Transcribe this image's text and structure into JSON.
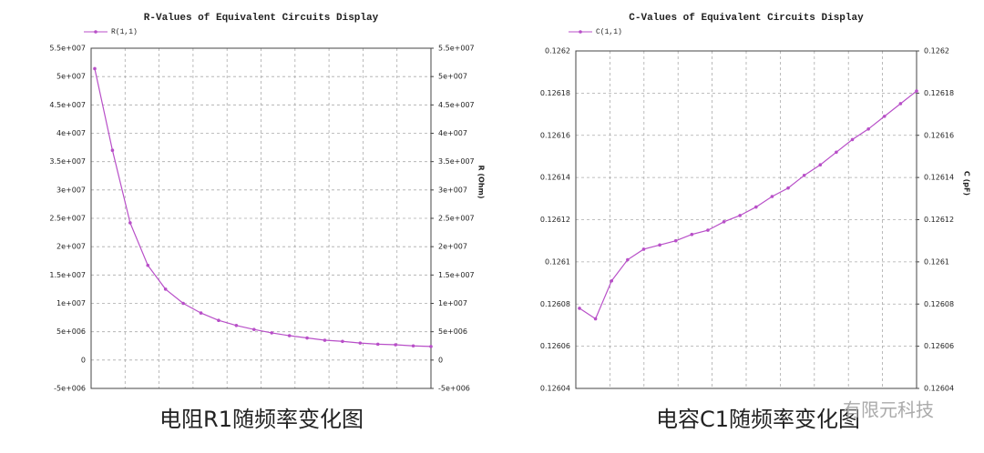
{
  "chart_data": [
    {
      "type": "line",
      "title": "R-Values of Equivalent Circuits Display",
      "y2label": "R (Ohm)",
      "series": [
        {
          "name": "R(1,1)",
          "color": "#b84fc8",
          "values": [
            51400000,
            37000000,
            24200000,
            16700000,
            12500000,
            10000000,
            8300000,
            7000000,
            6100000,
            5400000,
            4800000,
            4300000,
            3900000,
            3500000,
            3300000,
            3000000,
            2800000,
            2700000,
            2500000,
            2400000
          ]
        }
      ],
      "ylim": [
        -5000000,
        55000000
      ],
      "yticks": [
        {
          "value": -5000000,
          "label": "-5e+006"
        },
        0,
        {
          "value": 5000000,
          "label": "5e+006"
        },
        {
          "value": 10000000,
          "label": "1e+007"
        },
        {
          "value": 15000000,
          "label": "1.5e+007"
        },
        {
          "value": 20000000,
          "label": "2e+007"
        },
        {
          "value": 25000000,
          "label": "2.5e+007"
        },
        {
          "value": 30000000,
          "label": "3e+007"
        },
        {
          "value": 35000000,
          "label": "3.5e+007"
        },
        {
          "value": 40000000,
          "label": "4e+007"
        },
        {
          "value": 45000000,
          "label": "4.5e+007"
        },
        {
          "value": 50000000,
          "label": "5e+007"
        },
        {
          "value": 55000000,
          "label": "5.5e+007"
        }
      ],
      "y2lim": [
        -5000000,
        55000000
      ],
      "y2ticks": [
        {
          "value": -5000000,
          "label": "-5e+006"
        },
        0,
        {
          "value": 5000000,
          "label": "5e+006"
        },
        {
          "value": 10000000,
          "label": "1e+007"
        },
        {
          "value": 15000000,
          "label": "1.5e+007"
        },
        {
          "value": 20000000,
          "label": "2e+007"
        },
        {
          "value": 25000000,
          "label": "2.5e+007"
        },
        {
          "value": 30000000,
          "label": "3e+007"
        },
        {
          "value": 35000000,
          "label": "3.5e+007"
        },
        {
          "value": 40000000,
          "label": "4e+007"
        },
        {
          "value": 45000000,
          "label": "4.5e+007"
        },
        {
          "value": 50000000,
          "label": "5e+007"
        },
        {
          "value": 55000000,
          "label": "5.5e+007"
        }
      ],
      "grid": true
    },
    {
      "type": "line",
      "title": "C-Values of Equivalent Circuits Display",
      "y2label": "C (pF)",
      "series": [
        {
          "name": "C(1,1)",
          "color": "#b84fc8",
          "values": [
            0.126078,
            0.126073,
            0.126091,
            0.126101,
            0.126106,
            0.126108,
            0.12611,
            0.126113,
            0.126115,
            0.126119,
            0.126122,
            0.126126,
            0.126131,
            0.126135,
            0.126141,
            0.126146,
            0.126152,
            0.126158,
            0.126163,
            0.126169,
            0.126175,
            0.126181
          ]
        }
      ],
      "ylim": [
        0.12604,
        0.1262
      ],
      "yticks": [
        0.12604,
        0.12606,
        0.12608,
        0.1261,
        0.12612,
        0.12614,
        0.12616,
        0.12618,
        0.1262
      ],
      "y2lim": [
        0.12604,
        0.1262
      ],
      "y2ticks": [
        0.12604,
        0.12606,
        0.12608,
        0.1261,
        0.12612,
        0.12614,
        0.12616,
        0.12618,
        0.1262
      ],
      "grid": true
    }
  ],
  "captions": [
    "电阻R1随频率变化图",
    "电容C1随频率变化图"
  ],
  "watermark": "有限元科技"
}
